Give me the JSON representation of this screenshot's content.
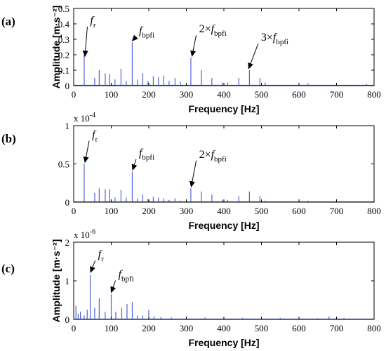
{
  "colors": {
    "spectrum": "#4f63d8",
    "axis": "#000000",
    "annotation": "#000000"
  },
  "chart_data": [
    {
      "type": "line",
      "panel_label": "(a)",
      "xlabel": "Frequency [Hz]",
      "ylabel": "Amplitude [m·s⁻²]",
      "xlim": [
        0,
        800
      ],
      "ylim": [
        0,
        0.5
      ],
      "xticks": [
        "0",
        "100",
        "200",
        "300",
        "400",
        "500",
        "600",
        "700",
        "800"
      ],
      "yticks": [
        "0",
        "0.1",
        "0.2",
        "0.3",
        "0.4",
        "0.5"
      ],
      "exponent": "",
      "grid": false,
      "peaks": [
        {
          "x": 28,
          "y": 0.2
        },
        {
          "x": 56,
          "y": 0.05
        },
        {
          "x": 68,
          "y": 0.1
        },
        {
          "x": 84,
          "y": 0.08
        },
        {
          "x": 96,
          "y": 0.075
        },
        {
          "x": 110,
          "y": 0.04
        },
        {
          "x": 126,
          "y": 0.11
        },
        {
          "x": 140,
          "y": 0.03
        },
        {
          "x": 156,
          "y": 0.28
        },
        {
          "x": 170,
          "y": 0.04
        },
        {
          "x": 184,
          "y": 0.08
        },
        {
          "x": 198,
          "y": 0.03
        },
        {
          "x": 212,
          "y": 0.06
        },
        {
          "x": 226,
          "y": 0.055
        },
        {
          "x": 240,
          "y": 0.065
        },
        {
          "x": 254,
          "y": 0.03
        },
        {
          "x": 270,
          "y": 0.05
        },
        {
          "x": 284,
          "y": 0.025
        },
        {
          "x": 312,
          "y": 0.18
        },
        {
          "x": 340,
          "y": 0.1
        },
        {
          "x": 368,
          "y": 0.05
        },
        {
          "x": 396,
          "y": 0.02
        },
        {
          "x": 410,
          "y": 0.02
        },
        {
          "x": 440,
          "y": 0.05
        },
        {
          "x": 468,
          "y": 0.1
        },
        {
          "x": 496,
          "y": 0.05
        },
        {
          "x": 510,
          "y": 0.02
        },
        {
          "x": 624,
          "y": 0.015
        },
        {
          "x": 780,
          "y": 0.01
        }
      ],
      "annotations": [
        {
          "main": "f",
          "sub": "r",
          "prefix": "",
          "point": [
            30,
            0.19
          ],
          "text_at": [
            55,
            0.4
          ]
        },
        {
          "main": "f",
          "sub": "bpfi",
          "prefix": "",
          "point": [
            156,
            0.29
          ],
          "text_at": [
            185,
            0.335
          ]
        },
        {
          "main": "f",
          "sub": "bpfi",
          "prefix": "2×",
          "point": [
            315,
            0.19
          ],
          "text_at": [
            345,
            0.345
          ]
        },
        {
          "main": "f",
          "sub": "bpfi",
          "prefix": "3×",
          "point": [
            466,
            0.11
          ],
          "text_at": [
            510,
            0.29
          ]
        }
      ]
    },
    {
      "type": "line",
      "panel_label": "(b)",
      "xlabel": "Frequency [Hz]",
      "ylabel": "",
      "xlim": [
        0,
        800
      ],
      "ylim": [
        0,
        1
      ],
      "xticks": [
        "0",
        "100",
        "200",
        "300",
        "400",
        "500",
        "600",
        "700",
        "800"
      ],
      "yticks": [
        "0",
        "0.5",
        "1"
      ],
      "exponent": "x 10",
      "exponent_power": "-4",
      "grid": false,
      "peaks": [
        {
          "x": 28,
          "y": 0.5
        },
        {
          "x": 56,
          "y": 0.12
        },
        {
          "x": 68,
          "y": 0.18
        },
        {
          "x": 84,
          "y": 0.17
        },
        {
          "x": 96,
          "y": 0.17
        },
        {
          "x": 110,
          "y": 0.06
        },
        {
          "x": 126,
          "y": 0.16
        },
        {
          "x": 140,
          "y": 0.06
        },
        {
          "x": 156,
          "y": 0.4
        },
        {
          "x": 170,
          "y": 0.05
        },
        {
          "x": 184,
          "y": 0.1
        },
        {
          "x": 198,
          "y": 0.04
        },
        {
          "x": 212,
          "y": 0.07
        },
        {
          "x": 226,
          "y": 0.06
        },
        {
          "x": 240,
          "y": 0.05
        },
        {
          "x": 254,
          "y": 0.03
        },
        {
          "x": 270,
          "y": 0.05
        },
        {
          "x": 284,
          "y": 0.02
        },
        {
          "x": 312,
          "y": 0.18
        },
        {
          "x": 340,
          "y": 0.14
        },
        {
          "x": 368,
          "y": 0.1
        },
        {
          "x": 396,
          "y": 0.03
        },
        {
          "x": 410,
          "y": 0.03
        },
        {
          "x": 440,
          "y": 0.08
        },
        {
          "x": 468,
          "y": 0.14
        },
        {
          "x": 496,
          "y": 0.08
        },
        {
          "x": 510,
          "y": 0.02
        },
        {
          "x": 580,
          "y": 0.01
        },
        {
          "x": 624,
          "y": 0.02
        },
        {
          "x": 780,
          "y": 0.01
        }
      ],
      "annotations": [
        {
          "main": "f",
          "sub": "r",
          "prefix": "",
          "point": [
            30,
            0.52
          ],
          "text_at": [
            60,
            0.84
          ]
        },
        {
          "main": "f",
          "sub": "bpfi",
          "prefix": "",
          "point": [
            157,
            0.42
          ],
          "text_at": [
            185,
            0.6
          ]
        },
        {
          "main": "f",
          "sub": "bpfi",
          "prefix": "2×",
          "point": [
            313,
            0.2
          ],
          "text_at": [
            345,
            0.58
          ]
        }
      ]
    },
    {
      "type": "line",
      "panel_label": "(c)",
      "xlabel": "Frequency [Hz]",
      "ylabel": "Amplitude [m·s⁻²]",
      "xlim": [
        0,
        800
      ],
      "ylim": [
        0,
        2
      ],
      "xticks": [
        "0",
        "100",
        "200",
        "300",
        "400",
        "500",
        "600",
        "700",
        "800"
      ],
      "yticks": [
        "0",
        "1",
        "2"
      ],
      "exponent": "x 10",
      "exponent_power": "-6",
      "grid": false,
      "peaks": [
        {
          "x": 6,
          "y": 0.35
        },
        {
          "x": 12,
          "y": 0.15
        },
        {
          "x": 18,
          "y": 0.2
        },
        {
          "x": 28,
          "y": 0.1
        },
        {
          "x": 36,
          "y": 0.25
        },
        {
          "x": 44,
          "y": 1.15
        },
        {
          "x": 56,
          "y": 0.3
        },
        {
          "x": 68,
          "y": 0.55
        },
        {
          "x": 84,
          "y": 0.2
        },
        {
          "x": 100,
          "y": 0.65
        },
        {
          "x": 112,
          "y": 0.2
        },
        {
          "x": 128,
          "y": 0.3
        },
        {
          "x": 142,
          "y": 0.4
        },
        {
          "x": 156,
          "y": 0.45
        },
        {
          "x": 170,
          "y": 0.1
        },
        {
          "x": 184,
          "y": 0.1
        },
        {
          "x": 200,
          "y": 0.25
        },
        {
          "x": 214,
          "y": 0.08
        },
        {
          "x": 232,
          "y": 0.06
        },
        {
          "x": 260,
          "y": 0.05
        },
        {
          "x": 300,
          "y": 0.05
        },
        {
          "x": 350,
          "y": 0.05
        },
        {
          "x": 400,
          "y": 0.04
        },
        {
          "x": 450,
          "y": 0.04
        },
        {
          "x": 500,
          "y": 0.04
        },
        {
          "x": 550,
          "y": 0.04
        },
        {
          "x": 600,
          "y": 0.03
        },
        {
          "x": 650,
          "y": 0.03
        },
        {
          "x": 680,
          "y": 0.08
        },
        {
          "x": 700,
          "y": 0.06
        },
        {
          "x": 720,
          "y": 0.04
        }
      ],
      "annotations": [
        {
          "main": "f",
          "sub": "r",
          "prefix": "",
          "point": [
            45,
            1.22
          ],
          "text_at": [
            76,
            1.6
          ]
        },
        {
          "main": "f",
          "sub": "bpfi",
          "prefix": "",
          "point": [
            100,
            0.7
          ],
          "text_at": [
            130,
            1.08
          ]
        }
      ]
    }
  ]
}
